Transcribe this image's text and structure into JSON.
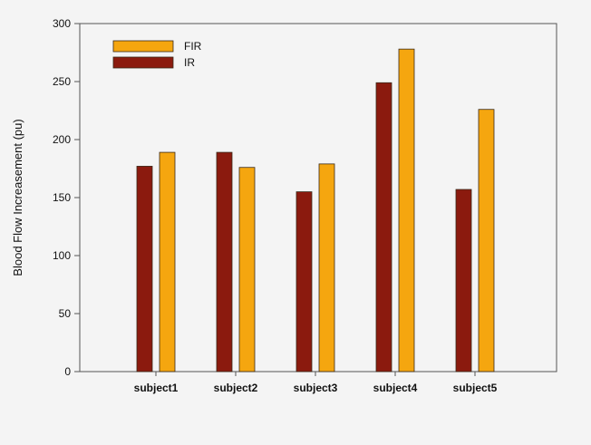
{
  "chart_data": {
    "type": "bar",
    "title": "",
    "xlabel": "",
    "ylabel": "Blood Flow Increasement (pu)",
    "ylim": [
      0,
      300
    ],
    "yticks": [
      0,
      50,
      100,
      150,
      200,
      250,
      300
    ],
    "categories": [
      "subject1",
      "subject2",
      "subject3",
      "subject4",
      "subject5"
    ],
    "series": [
      {
        "name": "IR",
        "color": "#8b1a0e",
        "values": [
          177,
          189,
          155,
          249,
          157
        ]
      },
      {
        "name": "FIR",
        "color": "#f5a60f",
        "values": [
          189,
          176,
          179,
          278,
          226
        ]
      }
    ],
    "legend": {
      "placement": "top-left",
      "order": [
        "FIR",
        "IR"
      ]
    },
    "grid": false
  }
}
